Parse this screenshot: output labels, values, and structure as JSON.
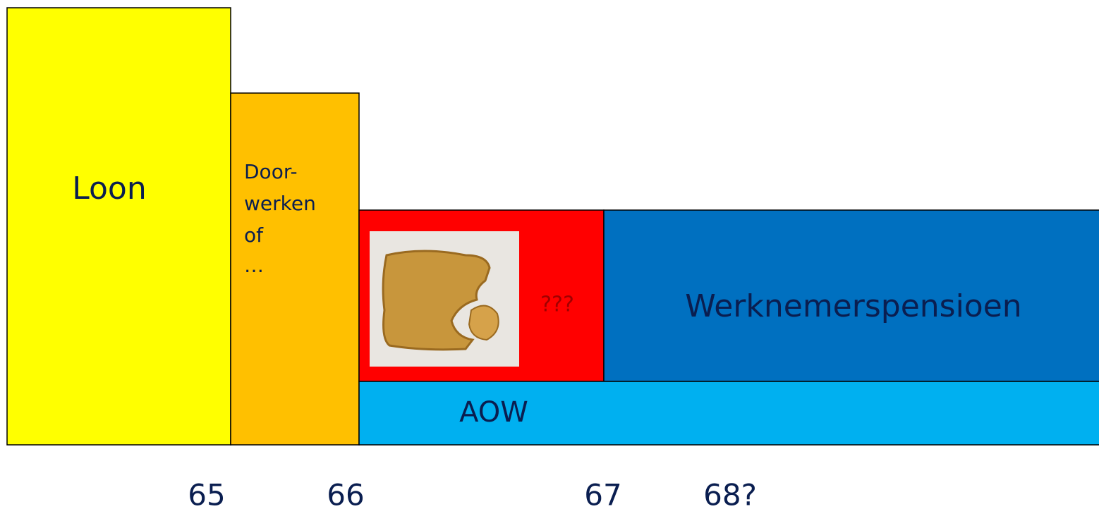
{
  "blocks": {
    "loon": "Loon",
    "doorwerken": [
      "Door-",
      "werken",
      "of",
      "…"
    ],
    "unknown": "???",
    "pension": "Werknemerspensioen",
    "aow": "AOW"
  },
  "ages": [
    "65",
    "66",
    "67",
    "68?"
  ]
}
